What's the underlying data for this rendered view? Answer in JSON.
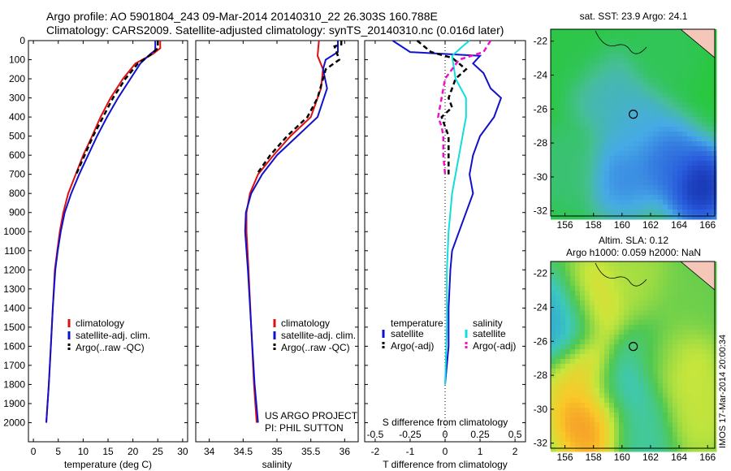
{
  "header": {
    "title_line1": "Argo profile: AO 5901804_243 09-Mar-2014 20140310_22 26.303S 160.788E",
    "title_line2": "Climatology: CARS2009. Satellite-adjusted climatology: synTS_20140310.nc (0.016d later)"
  },
  "colors": {
    "climatology": "#dd1111",
    "satellite": "#1111cc",
    "argo": "#000000",
    "salinity_satellite": "#11dddd",
    "salinity_argo": "#ee11cc"
  },
  "credits": {
    "project": "US ARGO PROJECT",
    "pi": "PI: PHIL SUTTON",
    "vertical_stamp": "IMOS 17-Mar-2014 20:00:34"
  },
  "chart_data": [
    {
      "id": "temperature",
      "type": "line",
      "xlabel": "temperature (deg C)",
      "xlim": [
        -1,
        31
      ],
      "xticks": [
        0,
        5,
        10,
        15,
        20,
        25,
        30
      ],
      "ylim": [
        2100,
        0
      ],
      "yticks": [
        0,
        100,
        200,
        300,
        400,
        500,
        600,
        700,
        800,
        900,
        1000,
        1100,
        1200,
        1300,
        1400,
        1500,
        1600,
        1700,
        1800,
        1900,
        2000
      ],
      "legend": [
        "climatology",
        "satellite-adj. clim.",
        "Argo(..raw -QC)"
      ],
      "series": [
        {
          "name": "climatology",
          "color": "#dd1111",
          "dash": "",
          "points": [
            [
              25.5,
              0
            ],
            [
              25.5,
              40
            ],
            [
              24.0,
              70
            ],
            [
              20.5,
              120
            ],
            [
              18.0,
              200
            ],
            [
              15.5,
              300
            ],
            [
              13.5,
              400
            ],
            [
              11.8,
              500
            ],
            [
              10.0,
              600
            ],
            [
              8.5,
              700
            ],
            [
              7.0,
              800
            ],
            [
              6.0,
              900
            ],
            [
              5.3,
              1000
            ],
            [
              4.8,
              1100
            ],
            [
              4.3,
              1200
            ],
            [
              3.9,
              1400
            ],
            [
              3.5,
              1600
            ],
            [
              3.1,
              1800
            ],
            [
              2.6,
              2000
            ]
          ]
        },
        {
          "name": "satellite-adj. clim.",
          "color": "#1111cc",
          "dash": "",
          "points": [
            [
              24.5,
              0
            ],
            [
              24.5,
              50
            ],
            [
              23.5,
              70
            ],
            [
              21.5,
              120
            ],
            [
              19.5,
              200
            ],
            [
              17.0,
              300
            ],
            [
              14.8,
              400
            ],
            [
              12.8,
              500
            ],
            [
              11.0,
              600
            ],
            [
              9.2,
              700
            ],
            [
              7.6,
              800
            ],
            [
              6.3,
              900
            ],
            [
              5.5,
              1000
            ],
            [
              4.9,
              1100
            ],
            [
              4.4,
              1200
            ],
            [
              3.9,
              1400
            ],
            [
              3.5,
              1600
            ],
            [
              3.1,
              1800
            ],
            [
              2.6,
              2000
            ]
          ]
        },
        {
          "name": "Argo(..raw -QC)",
          "color": "#000000",
          "dash": "6,4",
          "points": [
            [
              25.0,
              0
            ],
            [
              25.0,
              40
            ],
            [
              23.5,
              75
            ],
            [
              21.0,
              120
            ],
            [
              18.5,
              200
            ],
            [
              16.0,
              300
            ],
            [
              14.0,
              400
            ],
            [
              12.0,
              500
            ],
            [
              10.3,
              600
            ],
            [
              8.6,
              700
            ]
          ]
        }
      ]
    },
    {
      "id": "salinity",
      "type": "line",
      "xlabel": "salinity",
      "xlim": [
        33.8,
        36.2
      ],
      "xticks": [
        34,
        34.5,
        35,
        35.5,
        36
      ],
      "ylim": [
        2100,
        0
      ],
      "legend": [
        "climatology",
        "satellite-adj. clim.",
        "Argo(..raw -QC)"
      ],
      "series": [
        {
          "name": "climatology",
          "color": "#dd1111",
          "dash": "",
          "points": [
            [
              35.62,
              0
            ],
            [
              35.6,
              80
            ],
            [
              35.68,
              150
            ],
            [
              35.65,
              250
            ],
            [
              35.5,
              400
            ],
            [
              35.2,
              500
            ],
            [
              34.95,
              600
            ],
            [
              34.72,
              700
            ],
            [
              34.6,
              800
            ],
            [
              34.55,
              900
            ],
            [
              34.55,
              1000
            ],
            [
              34.58,
              1200
            ],
            [
              34.62,
              1500
            ],
            [
              34.66,
              1800
            ],
            [
              34.7,
              2000
            ]
          ]
        },
        {
          "name": "satellite-adj. clim.",
          "color": "#1111cc",
          "dash": "",
          "points": [
            [
              35.9,
              0
            ],
            [
              35.9,
              60
            ],
            [
              35.72,
              100
            ],
            [
              35.68,
              150
            ],
            [
              35.74,
              250
            ],
            [
              35.6,
              400
            ],
            [
              35.3,
              500
            ],
            [
              35.0,
              600
            ],
            [
              34.78,
              700
            ],
            [
              34.62,
              800
            ],
            [
              34.54,
              900
            ],
            [
              34.53,
              1000
            ],
            [
              34.57,
              1200
            ],
            [
              34.62,
              1500
            ],
            [
              34.67,
              1800
            ],
            [
              34.72,
              2000
            ]
          ]
        },
        {
          "name": "Argo(..raw -QC)",
          "color": "#000000",
          "dash": "6,4",
          "points": [
            [
              35.95,
              0
            ],
            [
              35.95,
              20
            ],
            [
              35.85,
              30
            ],
            [
              35.92,
              100
            ],
            [
              35.72,
              150
            ],
            [
              35.6,
              300
            ],
            [
              35.45,
              400
            ],
            [
              35.15,
              500
            ],
            [
              34.9,
              600
            ],
            [
              34.7,
              700
            ]
          ]
        }
      ]
    },
    {
      "id": "difference",
      "type": "line",
      "xlabel": "T difference from climatology",
      "toplabel": "S difference from climatology",
      "xlim": [
        -2.3,
        2.3
      ],
      "xticks": [
        -2,
        -1,
        0,
        1,
        2
      ],
      "sticklabels": [
        "-0.5",
        "-0.25",
        "0",
        "0.25",
        "0.5"
      ],
      "ylim": [
        2100,
        0
      ],
      "legend_temperature_title": "temperature",
      "legend_salinity_title": "salinity",
      "legend": [
        "satellite",
        "Argo(-adj)",
        "satellite",
        "Argo(-adj)"
      ],
      "series": [
        {
          "name": "satellite",
          "color": "#1111cc",
          "dash": "",
          "points": [
            [
              -1.5,
              0
            ],
            [
              -1.0,
              60
            ],
            [
              1.0,
              80
            ],
            [
              0.8,
              120
            ],
            [
              1.1,
              170
            ],
            [
              1.3,
              250
            ],
            [
              1.6,
              300
            ],
            [
              1.4,
              400
            ],
            [
              1.0,
              500
            ],
            [
              0.8,
              600
            ],
            [
              0.7,
              700
            ],
            [
              0.8,
              800
            ],
            [
              0.6,
              900
            ],
            [
              0.4,
              1000
            ],
            [
              0.2,
              1100
            ],
            [
              0.15,
              1200
            ],
            [
              0.1,
              1400
            ],
            [
              0.1,
              1600
            ],
            [
              0.0,
              1800
            ]
          ]
        },
        {
          "name": "Argo(-adj)",
          "color": "#000000",
          "dash": "6,4",
          "points": [
            [
              -0.8,
              0
            ],
            [
              -0.6,
              30
            ],
            [
              -0.4,
              60
            ],
            [
              0.2,
              90
            ],
            [
              0.6,
              150
            ],
            [
              0.3,
              200
            ],
            [
              0.1,
              300
            ],
            [
              0.2,
              350
            ],
            [
              -0.1,
              400
            ],
            [
              0.1,
              500
            ],
            [
              0.1,
              600
            ],
            [
              0.1,
              700
            ]
          ]
        },
        {
          "name": "satellite",
          "color": "#11dddd",
          "dash": "",
          "points": [
            [
              0.7,
              0
            ],
            [
              0.5,
              30
            ],
            [
              0.2,
              80
            ],
            [
              0.3,
              200
            ],
            [
              0.6,
              300
            ],
            [
              0.6,
              400
            ],
            [
              0.5,
              500
            ],
            [
              0.4,
              600
            ],
            [
              0.3,
              700
            ],
            [
              0.2,
              800
            ],
            [
              0.15,
              900
            ],
            [
              0.1,
              1000
            ],
            [
              0.05,
              1200
            ],
            [
              0.05,
              1500
            ],
            [
              0.0,
              1800
            ]
          ]
        },
        {
          "name": "Argo(-adj)",
          "color": "#ee11cc",
          "dash": "6,4",
          "points": [
            [
              1.3,
              0
            ],
            [
              1.1,
              60
            ],
            [
              0.4,
              100
            ],
            [
              0.0,
              200
            ],
            [
              -0.1,
              300
            ],
            [
              -0.2,
              400
            ],
            [
              -0.1,
              450
            ],
            [
              -0.05,
              500
            ],
            [
              -0.05,
              600
            ],
            [
              0.0,
              700
            ]
          ]
        }
      ]
    },
    {
      "id": "sst_map",
      "type": "heatmap",
      "title": "sat. SST: 23.9 Argo: 24.1",
      "xticks": [
        156,
        158,
        160,
        162,
        164,
        166
      ],
      "yticks": [
        -22,
        -24,
        -26,
        -28,
        -30,
        -32
      ],
      "xlim": [
        155,
        166.5
      ],
      "ylim": [
        -32.3,
        -21.3
      ],
      "marker": {
        "lon": 160.788,
        "lat": -26.303
      },
      "fields": [
        {
          "lon": 157,
          "lat": -22.5,
          "value": 0.05
        },
        {
          "lon": 163,
          "lat": -22.5,
          "value": 0.1
        },
        {
          "lon": 161,
          "lat": -27,
          "value": 0.55
        },
        {
          "lon": 159,
          "lat": -25,
          "value": 0.45
        },
        {
          "lon": 160,
          "lat": -30,
          "value": 0.7
        },
        {
          "lon": 163,
          "lat": -29,
          "value": 0.8
        },
        {
          "lon": 165.5,
          "lat": -30.5,
          "value": 1.0
        },
        {
          "lon": 156,
          "lat": -29.5,
          "value": 0.2
        }
      ]
    },
    {
      "id": "sla_map",
      "type": "heatmap",
      "title_line1": "Altim. SLA: 0.12",
      "title_line2": "Argo h1000: 0.059 h2000: NaN",
      "xticks": [
        156,
        158,
        160,
        162,
        164,
        166
      ],
      "yticks": [
        -22,
        -24,
        -26,
        -28,
        -30,
        -32
      ],
      "xlim": [
        155,
        166.5
      ],
      "ylim": [
        -32.3,
        -21.3
      ],
      "marker": {
        "lon": 160.788,
        "lat": -26.303
      },
      "fields": [
        {
          "lon": 156,
          "lat": -25,
          "value": -0.8
        },
        {
          "lon": 158,
          "lat": -24,
          "value": 0.6
        },
        {
          "lon": 161,
          "lat": -23,
          "value": 0.3
        },
        {
          "lon": 164,
          "lat": -24,
          "value": 0.1
        },
        {
          "lon": 157.5,
          "lat": -27.5,
          "value": 0.7
        },
        {
          "lon": 160,
          "lat": -28.5,
          "value": -0.5
        },
        {
          "lon": 163.5,
          "lat": -27,
          "value": 0.5
        },
        {
          "lon": 158,
          "lat": -30.5,
          "value": 0.9
        },
        {
          "lon": 161.5,
          "lat": -31,
          "value": -0.3
        },
        {
          "lon": 165,
          "lat": -30,
          "value": 0.4
        },
        {
          "lon": 162,
          "lat": -26.5,
          "value": -0.2
        }
      ]
    }
  ]
}
